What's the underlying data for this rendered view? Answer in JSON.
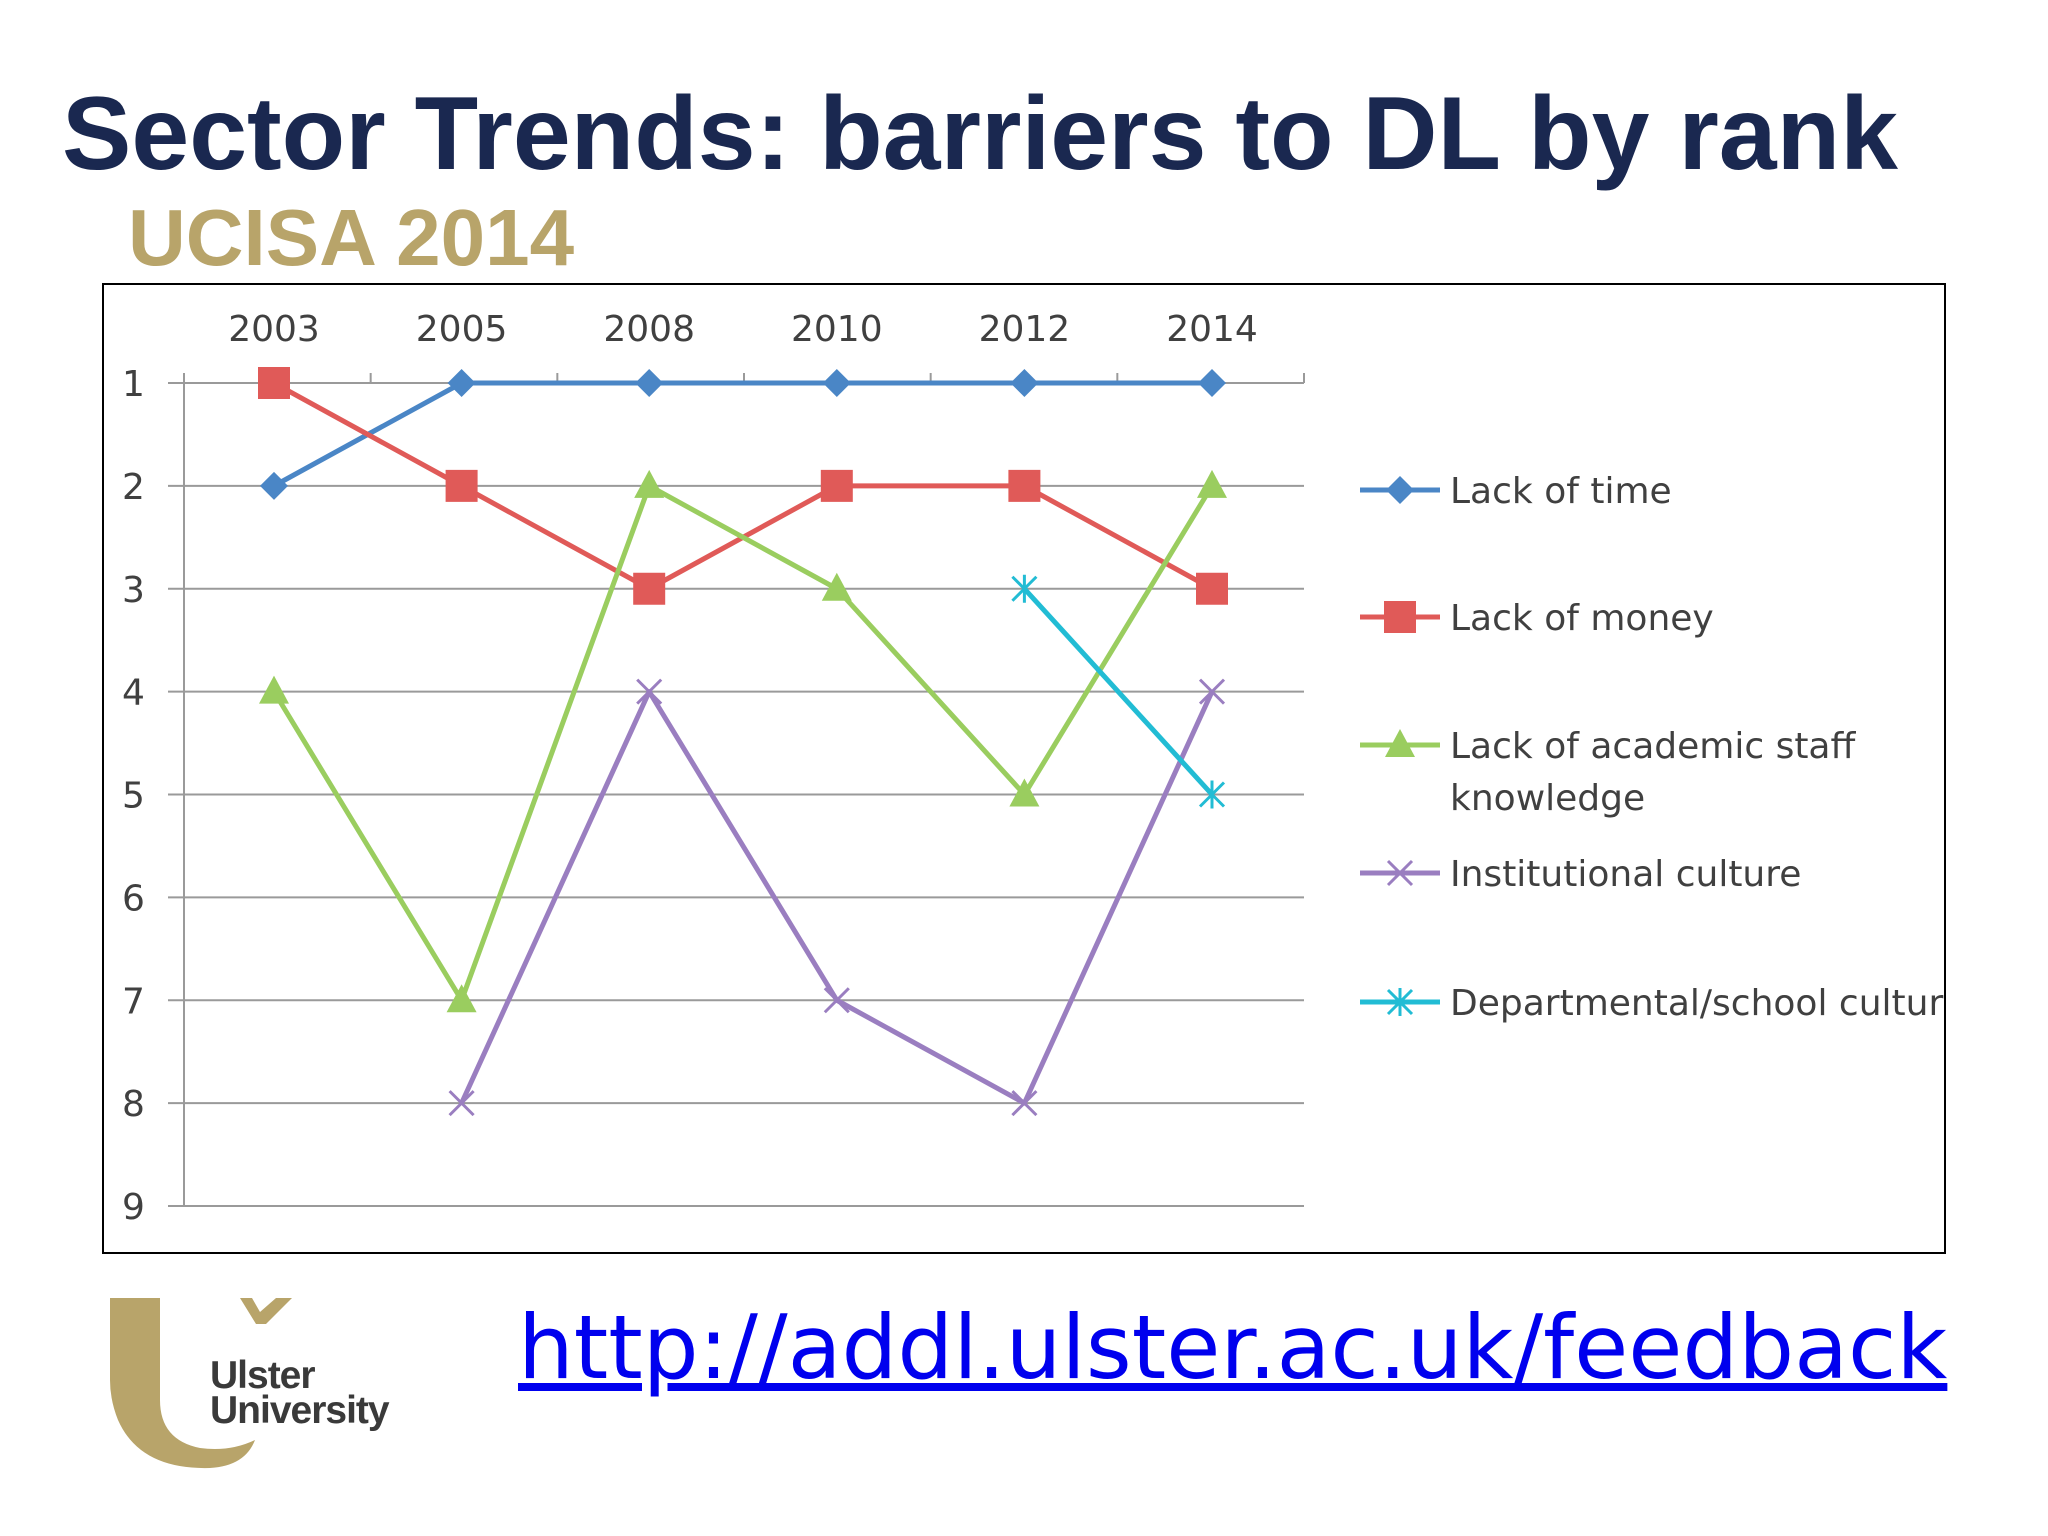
{
  "slide": {
    "title": "Sector Trends: barriers to DL by rank",
    "subtitle": "UCISA 2014",
    "link": "http://addl.ulster.ac.uk/feedback",
    "logo_text": [
      "Ulster",
      "University"
    ],
    "colors": {
      "title": "#1a2850",
      "subtitle": "#b8a46a",
      "link": "#0000ee"
    }
  },
  "chart_data": {
    "type": "line",
    "title": "",
    "xlabel": "",
    "ylabel": "",
    "categories": [
      "2003",
      "2005",
      "2008",
      "2010",
      "2012",
      "2014"
    ],
    "y_ticks": [
      "1",
      "2",
      "3",
      "4",
      "5",
      "6",
      "7",
      "8",
      "9"
    ],
    "ylim": [
      1,
      9
    ],
    "y_inverted": true,
    "x_axis_position": "top",
    "grid": true,
    "legend_position": "right",
    "series": [
      {
        "name": "Lack of time",
        "values": [
          2,
          1,
          1,
          1,
          1,
          1
        ],
        "color": "#4a86c6",
        "marker": "diamond"
      },
      {
        "name": "Lack of money",
        "values": [
          1,
          2,
          3,
          2,
          2,
          3
        ],
        "color": "#e05a58",
        "marker": "square"
      },
      {
        "name": "Lack of academic staff knowledge",
        "legend_lines": [
          "Lack of academic staff",
          "knowledge"
        ],
        "values": [
          4,
          7,
          2,
          3,
          5,
          2
        ],
        "color": "#9acd5f",
        "marker": "triangle"
      },
      {
        "name": "Institutional culture",
        "values": [
          null,
          8,
          4,
          7,
          8,
          4
        ],
        "color": "#9a7ec0",
        "marker": "x"
      },
      {
        "name": "Departmental/school culture",
        "values": [
          null,
          null,
          null,
          null,
          3,
          5
        ],
        "color": "#22bcd4",
        "marker": "star"
      }
    ]
  }
}
